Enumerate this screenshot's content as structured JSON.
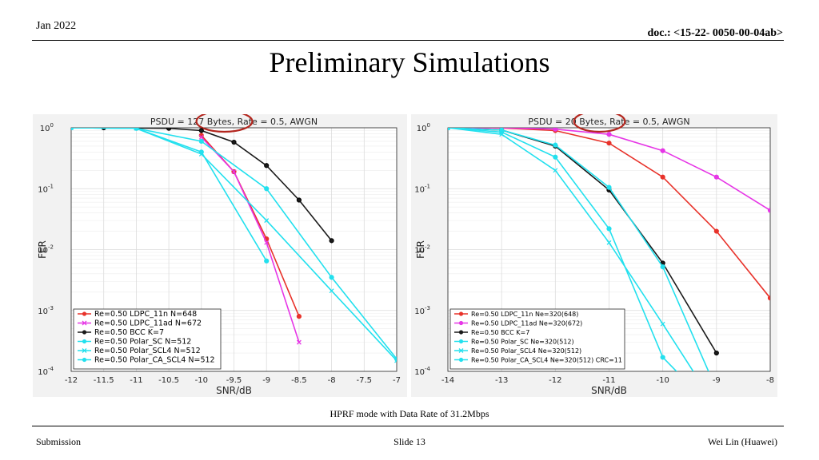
{
  "header": {
    "date": "Jan 2022",
    "doc": "doc.: <15-22- 0050-00-04ab>"
  },
  "title": "Preliminary Simulations",
  "caption": "HPRF mode with Data Rate of 31.2Mbps",
  "footer": {
    "left": "Submission",
    "center": "Slide 13",
    "right": "Wei Lin (Huawei)"
  },
  "colors": {
    "red": "#e8322a",
    "magenta": "#e636e6",
    "black": "#1a1a1a",
    "cyan": "#22e0ee",
    "highlight_ellipse": "#b3261e"
  },
  "chart_data": [
    {
      "type": "line",
      "title": "PSDU = 127 Bytes, Rate = 0.5, AWGN",
      "highlight": "127 Bytes",
      "xlabel": "SNR/dB",
      "ylabel": "FER",
      "yscale": "log",
      "xlim": [
        -12,
        -7
      ],
      "ylim": [
        0.0001,
        1
      ],
      "xticks": [
        -12,
        -11.5,
        -11,
        -10.5,
        -10,
        -9.5,
        -9,
        -8.5,
        -8,
        -7.5,
        -7
      ],
      "xticklabels": [
        "-12",
        "-11.5",
        "-11",
        "-10.5",
        "-10",
        "-9.5",
        "-9",
        "-8.5",
        "-8",
        "-7.5",
        "-7"
      ],
      "yticks": [
        1,
        0.1,
        0.01,
        0.001,
        0.0001
      ],
      "yticklabels": [
        "10^0",
        "10^-1",
        "10^-2",
        "10^-3",
        "10^-4"
      ],
      "grid": true,
      "legend_position": "bottom-left",
      "series": [
        {
          "name": "Re=0.50 LDPC_11n N=648",
          "color": "red",
          "marker": "circle",
          "x": [
            -10,
            -9.5,
            -9,
            -8.5
          ],
          "y": [
            0.75,
            0.19,
            0.015,
            0.0008
          ]
        },
        {
          "name": "Re=0.50 LDPC_11ad N=672",
          "color": "magenta",
          "marker": "x",
          "x": [
            -10,
            -9.5,
            -9,
            -8.5
          ],
          "y": [
            0.7,
            0.19,
            0.013,
            0.0003
          ]
        },
        {
          "name": "Re=0.50 BCC K=7",
          "color": "black",
          "marker": "circle",
          "x": [
            -11.5,
            -10.5,
            -10,
            -9.5,
            -9,
            -8.5,
            -8
          ],
          "y": [
            1,
            0.98,
            0.9,
            0.58,
            0.24,
            0.065,
            0.014
          ]
        },
        {
          "name": "Re=0.50 Polar_SC N=512",
          "color": "cyan",
          "marker": "circle",
          "x": [
            -12,
            -11,
            -10,
            -9
          ],
          "y": [
            1,
            0.98,
            0.4,
            0.0065
          ]
        },
        {
          "name": "Re=0.50 Polar_SCL4 N=512",
          "color": "cyan",
          "marker": "x",
          "x": [
            -12,
            -11,
            -10,
            -9,
            -8,
            -7
          ],
          "y": [
            1,
            0.98,
            0.37,
            0.03,
            0.0021,
            0.00015
          ]
        },
        {
          "name": "Re=0.50 Polar_CA_SCL4 N=512",
          "color": "cyan",
          "marker": "circle",
          "x": [
            -12,
            -11,
            -10,
            -9,
            -8,
            -7
          ],
          "y": [
            1,
            0.98,
            0.6,
            0.1,
            0.0035,
            0.00016
          ]
        }
      ]
    },
    {
      "type": "line",
      "title": "PSDU = 20 Bytes, Rate = 0.5, AWGN",
      "highlight": "20 Bytes",
      "xlabel": "SNR/dB",
      "ylabel": "FER",
      "yscale": "log",
      "xlim": [
        -14,
        -8
      ],
      "ylim": [
        0.0001,
        1
      ],
      "xticks": [
        -14,
        -13,
        -12,
        -11,
        -10,
        -9,
        -8
      ],
      "xticklabels": [
        "-14",
        "-13",
        "-12",
        "-11",
        "-10",
        "-9",
        "-8"
      ],
      "yticks": [
        1,
        0.1,
        0.01,
        0.001,
        0.0001
      ],
      "yticklabels": [
        "10^0",
        "10^-1",
        "10^-2",
        "10^-3",
        "10^-4"
      ],
      "grid": true,
      "legend_position": "bottom-left",
      "series": [
        {
          "name": "Re=0.50 LDPC_11n Ne=320(648)",
          "color": "red",
          "marker": "circle",
          "x": [
            -14,
            -13,
            -12,
            -11,
            -10,
            -9,
            -8
          ],
          "y": [
            1,
            0.99,
            0.9,
            0.56,
            0.155,
            0.02,
            0.0016
          ]
        },
        {
          "name": "Re=0.50 LDPC_11ad Ne=320(672)",
          "color": "magenta",
          "marker": "circle",
          "x": [
            -14,
            -13,
            -12,
            -11,
            -10,
            -9,
            -8
          ],
          "y": [
            1,
            1,
            0.95,
            0.78,
            0.42,
            0.155,
            0.044
          ]
        },
        {
          "name": "Re=0.50 BCC K=7",
          "color": "black",
          "marker": "circle",
          "x": [
            -14,
            -13,
            -12,
            -11,
            -10,
            -9
          ],
          "y": [
            1,
            0.92,
            0.5,
            0.095,
            0.006,
            0.0002
          ]
        },
        {
          "name": "Re=0.50 Polar_SC Ne=320(512)",
          "color": "cyan",
          "marker": "circle",
          "x": [
            -14,
            -13,
            -12,
            -11,
            -10,
            -9.5
          ],
          "y": [
            1,
            0.85,
            0.33,
            0.022,
            0.00017,
            6e-05
          ]
        },
        {
          "name": "Re=0.50 Polar_SCL4 Ne=320(512)",
          "color": "cyan",
          "marker": "x",
          "x": [
            -14,
            -13,
            -12,
            -11,
            -10,
            -9.4
          ],
          "y": [
            1,
            0.78,
            0.2,
            0.013,
            0.0006,
            9e-05
          ]
        },
        {
          "name": "Re=0.50 Polar_CA_SCL4 Ne=320(512) CRC=11",
          "color": "cyan",
          "marker": "circle",
          "x": [
            -14,
            -13,
            -12,
            -11,
            -10,
            -9.1
          ],
          "y": [
            1,
            0.92,
            0.52,
            0.105,
            0.0052,
            8e-05
          ]
        }
      ]
    }
  ]
}
